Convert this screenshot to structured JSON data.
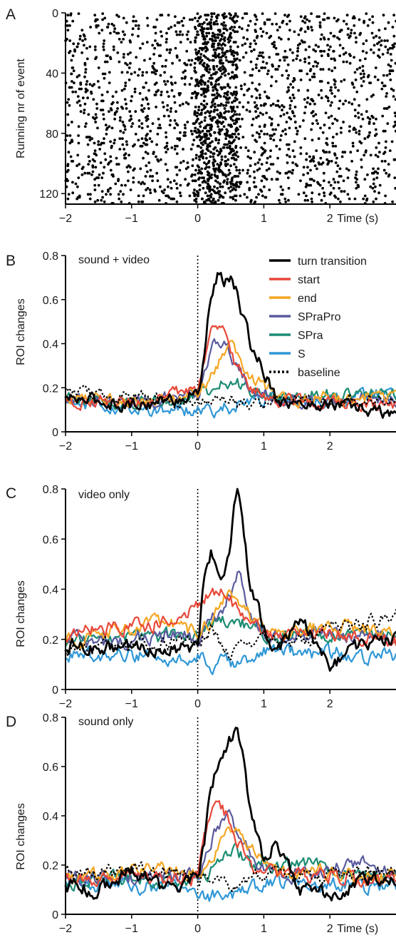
{
  "chart_data": [
    {
      "panel": "A",
      "type": "scatter",
      "ylabel": "Running nr of event",
      "xlabel": "Time (s)",
      "xlim": [
        -2,
        3
      ],
      "ylim": [
        0,
        127
      ],
      "y_inverted": true,
      "xticks": [
        -2,
        -1,
        0,
        1,
        2
      ],
      "yticks": [
        0,
        40,
        80,
        120
      ],
      "n_events": 127,
      "color": "#000000",
      "notes": "Raster of event onsets; dots denser between 0 and 0.5 s"
    },
    {
      "panel": "B",
      "type": "line",
      "annotation": "sound + video",
      "ylabel": "ROI changes",
      "xlim": [
        -2,
        3
      ],
      "ylim": [
        0,
        0.8
      ],
      "xticks": [
        -2,
        -1,
        0,
        1,
        2
      ],
      "yticks": [
        0,
        0.2,
        0.4,
        0.6,
        0.8
      ],
      "vline_x": 0,
      "legend_position": "top-right",
      "x": [
        -2.0,
        -1.5,
        -1.0,
        -0.5,
        0.0,
        0.1,
        0.2,
        0.3,
        0.4,
        0.5,
        0.6,
        0.7,
        0.8,
        1.0,
        1.2,
        1.5,
        2.0,
        2.5,
        3.0
      ],
      "series": [
        {
          "name": "turn transition",
          "color": "#000000",
          "dash": "solid",
          "width": 2.8,
          "values": [
            0.15,
            0.14,
            0.12,
            0.14,
            0.17,
            0.35,
            0.62,
            0.7,
            0.68,
            0.7,
            0.62,
            0.5,
            0.4,
            0.28,
            0.15,
            0.12,
            0.13,
            0.1,
            0.08
          ]
        },
        {
          "name": "start",
          "color": "#e8483a",
          "dash": "solid",
          "width": 2.2,
          "values": [
            0.14,
            0.15,
            0.13,
            0.15,
            0.2,
            0.32,
            0.43,
            0.48,
            0.44,
            0.36,
            0.29,
            0.24,
            0.2,
            0.16,
            0.14,
            0.14,
            0.13,
            0.12,
            0.12
          ]
        },
        {
          "name": "end",
          "color": "#f5a623",
          "dash": "solid",
          "width": 2.2,
          "values": [
            0.16,
            0.15,
            0.14,
            0.15,
            0.18,
            0.22,
            0.26,
            0.3,
            0.35,
            0.38,
            0.34,
            0.28,
            0.25,
            0.22,
            0.17,
            0.15,
            0.15,
            0.16,
            0.15
          ]
        },
        {
          "name": "SPraPro",
          "color": "#5a5a9e",
          "dash": "solid",
          "width": 2.2,
          "values": [
            0.15,
            0.14,
            0.14,
            0.15,
            0.17,
            0.25,
            0.36,
            0.42,
            0.4,
            0.34,
            0.28,
            0.24,
            0.21,
            0.17,
            0.15,
            0.14,
            0.14,
            0.15,
            0.15
          ]
        },
        {
          "name": "SPra",
          "color": "#1b8b73",
          "dash": "solid",
          "width": 2.2,
          "values": [
            0.14,
            0.14,
            0.13,
            0.14,
            0.15,
            0.17,
            0.19,
            0.21,
            0.22,
            0.21,
            0.22,
            0.2,
            0.19,
            0.18,
            0.16,
            0.17,
            0.18,
            0.18,
            0.16
          ]
        },
        {
          "name": "S",
          "color": "#2f97d6",
          "dash": "solid",
          "width": 2.2,
          "values": [
            0.13,
            0.12,
            0.11,
            0.1,
            0.1,
            0.1,
            0.09,
            0.1,
            0.11,
            0.11,
            0.12,
            0.12,
            0.13,
            0.14,
            0.15,
            0.14,
            0.15,
            0.17,
            0.16
          ]
        },
        {
          "name": "baseline",
          "color": "#000000",
          "dash": "dotted",
          "width": 2.2,
          "values": [
            0.18,
            0.17,
            0.16,
            0.15,
            0.14,
            0.14,
            0.15,
            0.14,
            0.13,
            0.14,
            0.13,
            0.12,
            0.12,
            0.13,
            0.13,
            0.14,
            0.14,
            0.15,
            0.15
          ]
        }
      ]
    },
    {
      "panel": "C",
      "type": "line",
      "annotation": "video only",
      "ylabel": "ROI changes",
      "xlim": [
        -2,
        3
      ],
      "ylim": [
        0,
        0.8
      ],
      "xticks": [
        -2,
        -1,
        0,
        1,
        2
      ],
      "yticks": [
        0,
        0.2,
        0.4,
        0.6,
        0.8
      ],
      "vline_x": 0,
      "x": [
        -2.0,
        -1.5,
        -1.0,
        -0.5,
        0.0,
        0.1,
        0.2,
        0.3,
        0.4,
        0.5,
        0.6,
        0.7,
        0.8,
        1.0,
        1.2,
        1.5,
        2.0,
        2.5,
        3.0
      ],
      "series": [
        {
          "name": "turn transition",
          "color": "#000000",
          "dash": "solid",
          "width": 2.8,
          "values": [
            0.18,
            0.16,
            0.17,
            0.16,
            0.17,
            0.45,
            0.55,
            0.5,
            0.45,
            0.6,
            0.82,
            0.6,
            0.4,
            0.25,
            0.14,
            0.3,
            0.1,
            0.18,
            0.2
          ]
        },
        {
          "name": "start",
          "color": "#e8483a",
          "dash": "solid",
          "width": 2.2,
          "values": [
            0.22,
            0.24,
            0.25,
            0.27,
            0.32,
            0.36,
            0.38,
            0.4,
            0.38,
            0.35,
            0.32,
            0.3,
            0.28,
            0.24,
            0.2,
            0.22,
            0.22,
            0.2,
            0.19
          ]
        },
        {
          "name": "end",
          "color": "#f5a623",
          "dash": "solid",
          "width": 2.2,
          "values": [
            0.2,
            0.22,
            0.24,
            0.28,
            0.22,
            0.25,
            0.28,
            0.32,
            0.36,
            0.38,
            0.36,
            0.33,
            0.3,
            0.24,
            0.2,
            0.22,
            0.26,
            0.24,
            0.22
          ]
        },
        {
          "name": "SPraPro",
          "color": "#5a5a9e",
          "dash": "solid",
          "width": 2.2,
          "values": [
            0.2,
            0.19,
            0.2,
            0.22,
            0.2,
            0.24,
            0.28,
            0.3,
            0.34,
            0.4,
            0.48,
            0.4,
            0.3,
            0.22,
            0.2,
            0.22,
            0.22,
            0.21,
            0.2
          ]
        },
        {
          "name": "SPra",
          "color": "#1b8b73",
          "dash": "solid",
          "width": 2.2,
          "values": [
            0.19,
            0.2,
            0.21,
            0.22,
            0.2,
            0.22,
            0.25,
            0.27,
            0.28,
            0.28,
            0.27,
            0.26,
            0.24,
            0.22,
            0.21,
            0.24,
            0.22,
            0.23,
            0.22
          ]
        },
        {
          "name": "S",
          "color": "#2f97d6",
          "dash": "solid",
          "width": 2.2,
          "values": [
            0.14,
            0.13,
            0.14,
            0.13,
            0.12,
            0.12,
            0.1,
            0.1,
            0.11,
            0.1,
            0.11,
            0.12,
            0.13,
            0.15,
            0.16,
            0.14,
            0.15,
            0.13,
            0.14
          ]
        },
        {
          "name": "baseline",
          "color": "#000000",
          "dash": "dotted",
          "width": 2.2,
          "values": [
            0.16,
            0.17,
            0.18,
            0.19,
            0.18,
            0.22,
            0.24,
            0.2,
            0.16,
            0.12,
            0.14,
            0.18,
            0.2,
            0.22,
            0.2,
            0.18,
            0.24,
            0.26,
            0.3
          ]
        }
      ]
    },
    {
      "panel": "D",
      "type": "line",
      "annotation": "sound only",
      "ylabel": "ROI changes",
      "xlabel": "Time (s)",
      "xlim": [
        -2,
        3
      ],
      "ylim": [
        0,
        0.8
      ],
      "xticks": [
        -2,
        -1,
        0,
        1,
        2
      ],
      "yticks": [
        0,
        0.2,
        0.4,
        0.6,
        0.8
      ],
      "vline_x": 0,
      "x": [
        -2.0,
        -1.5,
        -1.0,
        -0.5,
        0.0,
        0.1,
        0.2,
        0.3,
        0.4,
        0.5,
        0.6,
        0.7,
        0.8,
        1.0,
        1.2,
        1.5,
        2.0,
        2.5,
        3.0
      ],
      "series": [
        {
          "name": "turn transition",
          "color": "#000000",
          "dash": "solid",
          "width": 2.8,
          "values": [
            0.12,
            0.1,
            0.18,
            0.1,
            0.14,
            0.3,
            0.5,
            0.6,
            0.68,
            0.72,
            0.78,
            0.6,
            0.4,
            0.22,
            0.3,
            0.1,
            0.08,
            0.14,
            0.15
          ]
        },
        {
          "name": "start",
          "color": "#e8483a",
          "dash": "solid",
          "width": 2.2,
          "values": [
            0.15,
            0.14,
            0.16,
            0.15,
            0.15,
            0.3,
            0.42,
            0.46,
            0.42,
            0.36,
            0.3,
            0.24,
            0.2,
            0.18,
            0.16,
            0.17,
            0.15,
            0.14,
            0.14
          ]
        },
        {
          "name": "end",
          "color": "#f5a623",
          "dash": "solid",
          "width": 2.2,
          "values": [
            0.16,
            0.15,
            0.17,
            0.18,
            0.17,
            0.18,
            0.22,
            0.26,
            0.3,
            0.34,
            0.35,
            0.32,
            0.28,
            0.22,
            0.18,
            0.16,
            0.17,
            0.16,
            0.16
          ]
        },
        {
          "name": "SPraPro",
          "color": "#5a5a9e",
          "dash": "solid",
          "width": 2.2,
          "values": [
            0.15,
            0.15,
            0.16,
            0.16,
            0.16,
            0.22,
            0.3,
            0.36,
            0.4,
            0.38,
            0.34,
            0.28,
            0.24,
            0.2,
            0.17,
            0.16,
            0.18,
            0.2,
            0.17
          ]
        },
        {
          "name": "SPra",
          "color": "#1b8b73",
          "dash": "solid",
          "width": 2.2,
          "values": [
            0.13,
            0.14,
            0.15,
            0.14,
            0.14,
            0.16,
            0.18,
            0.22,
            0.24,
            0.26,
            0.25,
            0.23,
            0.21,
            0.2,
            0.18,
            0.22,
            0.17,
            0.16,
            0.15
          ]
        },
        {
          "name": "S",
          "color": "#2f97d6",
          "dash": "solid",
          "width": 2.2,
          "values": [
            0.13,
            0.12,
            0.12,
            0.1,
            0.09,
            0.08,
            0.07,
            0.08,
            0.09,
            0.08,
            0.09,
            0.1,
            0.11,
            0.12,
            0.13,
            0.12,
            0.12,
            0.11,
            0.12
          ]
        },
        {
          "name": "baseline",
          "color": "#000000",
          "dash": "dotted",
          "width": 2.2,
          "values": [
            0.18,
            0.16,
            0.18,
            0.17,
            0.16,
            0.14,
            0.12,
            0.12,
            0.11,
            0.12,
            0.12,
            0.13,
            0.14,
            0.15,
            0.16,
            0.15,
            0.16,
            0.17,
            0.18
          ]
        }
      ]
    }
  ],
  "figure": {
    "panel_letters": [
      "A",
      "B",
      "C",
      "D"
    ],
    "time_axis_label": "Time (s)"
  }
}
